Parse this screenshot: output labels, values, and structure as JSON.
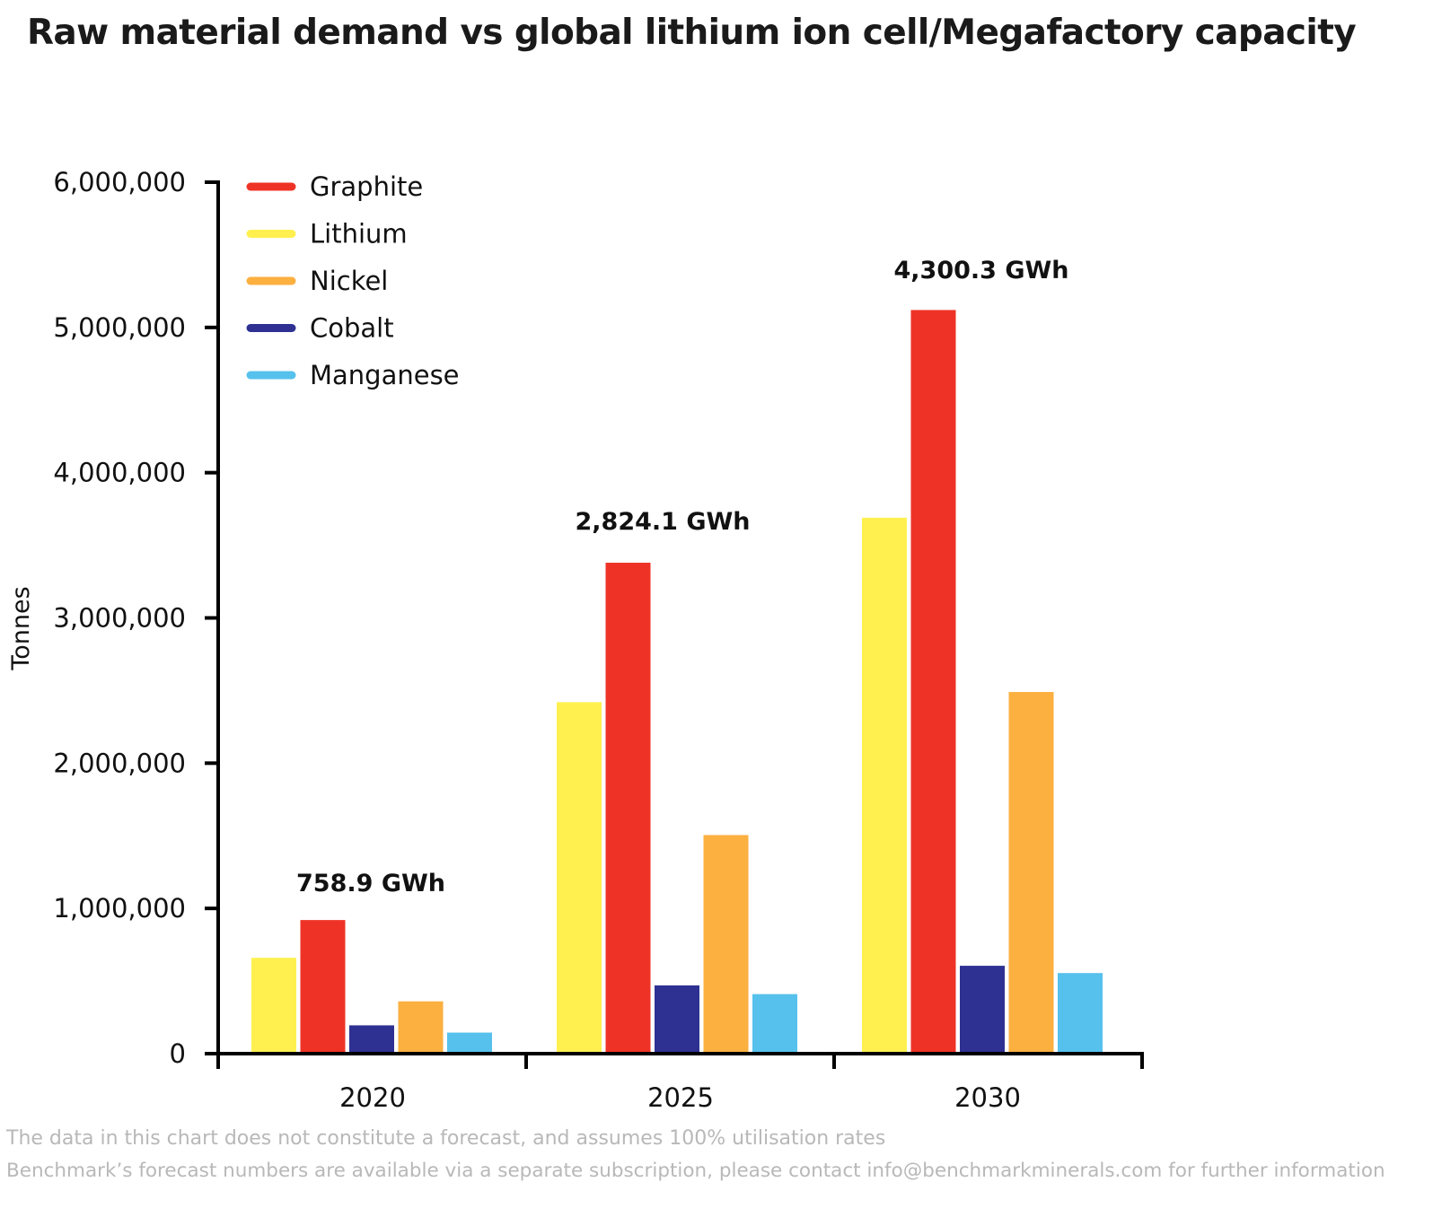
{
  "chart_data": {
    "type": "bar",
    "title": "Raw material demand vs global lithium ion cell/Megafactory capacity",
    "ylabel": "Tonnes",
    "xlabel": "",
    "ylim": [
      0,
      6000000
    ],
    "yticks": [
      0,
      1000000,
      2000000,
      3000000,
      4000000,
      5000000,
      6000000
    ],
    "ytick_labels": [
      "0",
      "1,000,000",
      "2,000,000",
      "3,000,000",
      "4,000,000",
      "5,000,000",
      "6,000,000"
    ],
    "categories": [
      "2020",
      "2025",
      "2030"
    ],
    "series": [
      {
        "name": "Lithium",
        "color": "#FFF050",
        "values": [
          660000,
          2420000,
          3690000
        ]
      },
      {
        "name": "Graphite",
        "color": "#EE3326",
        "values": [
          920000,
          3380000,
          5120000
        ]
      },
      {
        "name": "Cobalt",
        "color": "#2E3192",
        "values": [
          195000,
          470000,
          605000
        ]
      },
      {
        "name": "Nickel",
        "color": "#FBB040",
        "values": [
          360000,
          1505000,
          2490000
        ]
      },
      {
        "name": "Manganese",
        "color": "#56C1EC",
        "values": [
          145000,
          410000,
          555000
        ]
      }
    ],
    "legend_order": [
      "Graphite",
      "Lithium",
      "Nickel",
      "Cobalt",
      "Manganese"
    ],
    "legend_position": "top-left",
    "annotations": [
      "758.9 GWh",
      "2,824.1 GWh",
      "4,300.3 GWh"
    ],
    "grid": false
  },
  "footnotes": [
    "The data in this chart does not constitute a forecast, and assumes 100% utilisation rates",
    "Benchmark’s forecast numbers are available via a separate subscription, please contact info@benchmarkminerals.com for further information"
  ]
}
